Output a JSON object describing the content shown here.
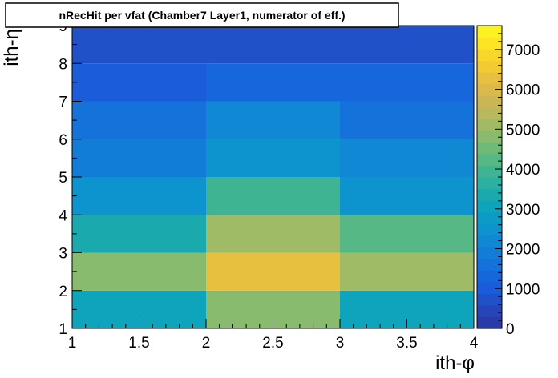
{
  "chart_data": {
    "type": "heatmap",
    "title": "nRecHit per vfat (Chamber7 Layer1, numerator of eff.)",
    "xlabel": "ith-φ",
    "ylabel": "ith-η",
    "xlim": [
      1,
      4
    ],
    "ylim": [
      1,
      9
    ],
    "x_edges": [
      1,
      2,
      3,
      4
    ],
    "y_edges": [
      1,
      2,
      3,
      4,
      5,
      6,
      7,
      8,
      9
    ],
    "x_ticks": [
      "1",
      "1.5",
      "2",
      "2.5",
      "3",
      "3.5",
      "4"
    ],
    "y_ticks": [
      "1",
      "2",
      "3",
      "4",
      "5",
      "6",
      "7",
      "8",
      "9"
    ],
    "colorbar_ticks": [
      "0",
      "1000",
      "2000",
      "3000",
      "4000",
      "5000",
      "6000",
      "7000"
    ],
    "zlim": [
      0,
      7600
    ],
    "z": [
      [
        3000,
        4700,
        3200
      ],
      [
        4700,
        6400,
        5100
      ],
      [
        3300,
        5100,
        4100
      ],
      [
        2500,
        3800,
        2600
      ],
      [
        1800,
        2500,
        2100
      ],
      [
        1600,
        2300,
        1500
      ],
      [
        1100,
        1400,
        1300
      ],
      [
        700,
        800,
        800
      ]
    ],
    "palette": [
      "#2a3aa8",
      "#2745b8",
      "#2051c9",
      "#1a5cd9",
      "#1667dc",
      "#1472da",
      "#127dd6",
      "#1088d3",
      "#0d93ce",
      "#0b9cc6",
      "#0ea4bb",
      "#1aaaae",
      "#2bb0a1",
      "#3fb493",
      "#56b884",
      "#6fba77",
      "#88bb6d",
      "#a0bb65",
      "#b8b95e",
      "#cbb655",
      "#dcb94c",
      "#e8c03f",
      "#f2cb32",
      "#f8d72a",
      "#fbe525",
      "#fbf21f"
    ],
    "grid": false
  }
}
